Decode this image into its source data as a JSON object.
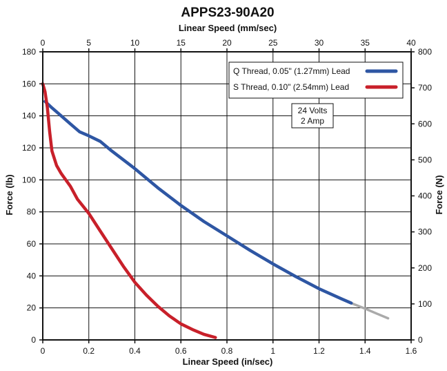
{
  "chart_data": {
    "type": "line",
    "title": "APPS23-90A20",
    "xlabel": "Linear Speed (in/sec)",
    "ylabel": "Force (lb)",
    "x2label": "Linear Speed (mm/sec)",
    "y2label": "Force (N)",
    "xlim": [
      0,
      1.6
    ],
    "ylim": [
      0,
      180
    ],
    "x2lim": [
      0,
      40
    ],
    "y2lim": [
      0,
      800
    ],
    "xticks": [
      "0",
      "0.2",
      "0.4",
      "0.6",
      "0.8",
      "1",
      "1.2",
      "1.4",
      "1.6"
    ],
    "yticks": [
      "0",
      "20",
      "40",
      "60",
      "80",
      "100",
      "120",
      "140",
      "160",
      "180"
    ],
    "x2ticks": [
      "0",
      "5",
      "10",
      "15",
      "20",
      "25",
      "30",
      "35",
      "40"
    ],
    "y2ticks": [
      "0",
      "100",
      "200",
      "300",
      "400",
      "500",
      "600",
      "700",
      "800"
    ],
    "grid": true,
    "legend_position": "top-right",
    "series": [
      {
        "name": "Q Thread, 0.05\" (1.27mm) Lead",
        "color": "#2e56a3",
        "x": [
          0.01,
          0.04,
          0.08,
          0.12,
          0.16,
          0.2,
          0.25,
          0.3,
          0.4,
          0.5,
          0.6,
          0.7,
          0.8,
          0.9,
          1.0,
          1.1,
          1.2,
          1.3,
          1.34
        ],
        "y": [
          149,
          145,
          140,
          135,
          130,
          127.5,
          124,
          118,
          107,
          95,
          84,
          74,
          65,
          56,
          47.5,
          39.5,
          32,
          25.5,
          23
        ],
        "extension": {
          "color": "#aaaaaa",
          "x": [
            1.34,
            1.4,
            1.45,
            1.5
          ],
          "y": [
            23,
            19.5,
            16.5,
            13.5
          ]
        }
      },
      {
        "name": "S Thread, 0.10\" (2.54mm) Lead",
        "color": "#c8202a",
        "x": [
          0.0,
          0.01,
          0.02,
          0.03,
          0.04,
          0.06,
          0.08,
          0.12,
          0.15,
          0.2,
          0.25,
          0.3,
          0.35,
          0.4,
          0.45,
          0.5,
          0.55,
          0.6,
          0.65,
          0.7,
          0.75
        ],
        "y": [
          160,
          155,
          145,
          130,
          118,
          109,
          104,
          96,
          88,
          79,
          68,
          57,
          46,
          36,
          28,
          21,
          15,
          10,
          6.5,
          3.5,
          1.5
        ]
      }
    ],
    "annotations": [
      "24 Volts",
      "2 Amp"
    ]
  },
  "style": {
    "axis_color": "#111111",
    "grid_color": "#111111",
    "background": "#ffffff"
  }
}
